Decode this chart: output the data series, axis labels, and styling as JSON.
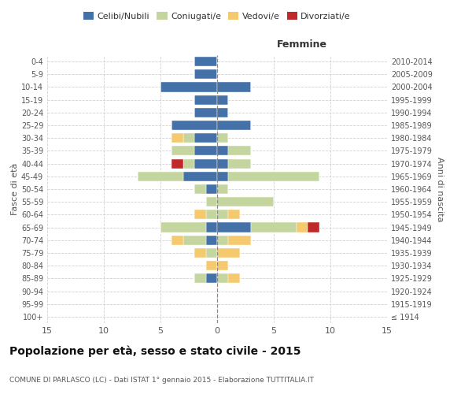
{
  "age_groups": [
    "100+",
    "95-99",
    "90-94",
    "85-89",
    "80-84",
    "75-79",
    "70-74",
    "65-69",
    "60-64",
    "55-59",
    "50-54",
    "45-49",
    "40-44",
    "35-39",
    "30-34",
    "25-29",
    "20-24",
    "15-19",
    "10-14",
    "5-9",
    "0-4"
  ],
  "birth_years": [
    "≤ 1914",
    "1915-1919",
    "1920-1924",
    "1925-1929",
    "1930-1934",
    "1935-1939",
    "1940-1944",
    "1945-1949",
    "1950-1954",
    "1955-1959",
    "1960-1964",
    "1965-1969",
    "1970-1974",
    "1975-1979",
    "1980-1984",
    "1985-1989",
    "1990-1994",
    "1995-1999",
    "2000-2004",
    "2005-2009",
    "2010-2014"
  ],
  "male": {
    "celibi": [
      0,
      0,
      0,
      1,
      0,
      0,
      1,
      1,
      0,
      0,
      1,
      3,
      2,
      2,
      2,
      4,
      2,
      2,
      5,
      2,
      2
    ],
    "coniugati": [
      0,
      0,
      0,
      1,
      0,
      1,
      2,
      4,
      1,
      1,
      1,
      4,
      1,
      2,
      1,
      0,
      0,
      0,
      0,
      0,
      0
    ],
    "vedovi": [
      0,
      0,
      0,
      0,
      1,
      1,
      1,
      0,
      1,
      0,
      0,
      0,
      0,
      0,
      1,
      0,
      0,
      0,
      0,
      0,
      0
    ],
    "divorziati": [
      0,
      0,
      0,
      0,
      0,
      0,
      0,
      0,
      0,
      0,
      0,
      0,
      1,
      0,
      0,
      0,
      0,
      0,
      0,
      0,
      0
    ]
  },
  "female": {
    "nubili": [
      0,
      0,
      0,
      0,
      0,
      0,
      0,
      3,
      0,
      0,
      0,
      1,
      1,
      1,
      0,
      3,
      1,
      1,
      3,
      0,
      0
    ],
    "coniugate": [
      0,
      0,
      0,
      1,
      0,
      0,
      1,
      4,
      1,
      5,
      1,
      8,
      2,
      2,
      1,
      0,
      0,
      0,
      0,
      0,
      0
    ],
    "vedove": [
      0,
      0,
      0,
      1,
      1,
      2,
      2,
      1,
      1,
      0,
      0,
      0,
      0,
      0,
      0,
      0,
      0,
      0,
      0,
      0,
      0
    ],
    "divorziate": [
      0,
      0,
      0,
      0,
      0,
      0,
      0,
      1,
      0,
      0,
      0,
      0,
      0,
      0,
      0,
      0,
      0,
      0,
      0,
      0,
      0
    ]
  },
  "colors": {
    "celibi_nubili": "#4472a8",
    "coniugati": "#c5d5a0",
    "vedovi": "#f5c96e",
    "divorziati": "#c0292a"
  },
  "title": "Popolazione per età, sesso e stato civile - 2015",
  "subtitle": "COMUNE DI PARLASCO (LC) - Dati ISTAT 1° gennaio 2015 - Elaborazione TUTTITALIA.IT",
  "xlabel_right": "Femmine",
  "ylabel_left": "Fasce di età",
  "ylabel_right": "Anni di nascita",
  "xlim": 15,
  "background_color": "#ffffff",
  "grid_color": "#cccccc"
}
